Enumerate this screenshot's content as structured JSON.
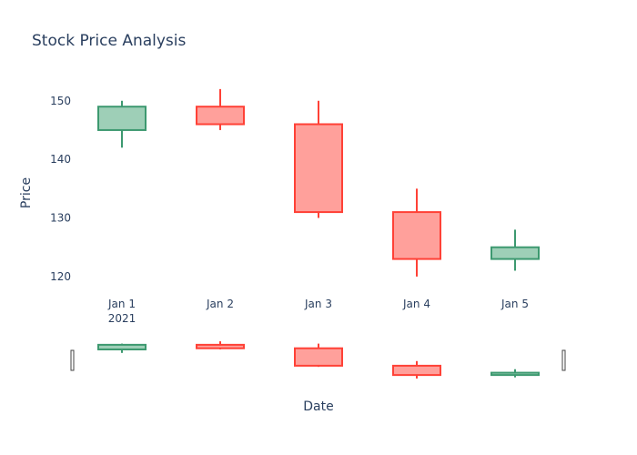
{
  "chart_data": {
    "type": "candlestick",
    "title": "Stock Price Analysis",
    "xlabel": "Date",
    "ylabel": "Price",
    "ylim": [
      117.5,
      154
    ],
    "y_ticks": [
      120,
      130,
      140,
      150
    ],
    "x_tick_labels": [
      "Jan 1",
      "Jan 2",
      "Jan 3",
      "Jan 4",
      "Jan 5"
    ],
    "x_year_label": "2021",
    "colors": {
      "increasing_line": "#3D9970",
      "increasing_fill": "#9ECFB7",
      "decreasing_line": "#FF4136",
      "decreasing_fill": "#FFA09B"
    },
    "range_slider": true,
    "candles": [
      {
        "date": "2021-01-01",
        "open": 145,
        "high": 150,
        "low": 142,
        "close": 149
      },
      {
        "date": "2021-01-02",
        "open": 149,
        "high": 152,
        "low": 145,
        "close": 146
      },
      {
        "date": "2021-01-03",
        "open": 146,
        "high": 150,
        "low": 130,
        "close": 131
      },
      {
        "date": "2021-01-04",
        "open": 131,
        "high": 135,
        "low": 120,
        "close": 123
      },
      {
        "date": "2021-01-05",
        "open": 123,
        "high": 128,
        "low": 121,
        "close": 125
      }
    ]
  }
}
